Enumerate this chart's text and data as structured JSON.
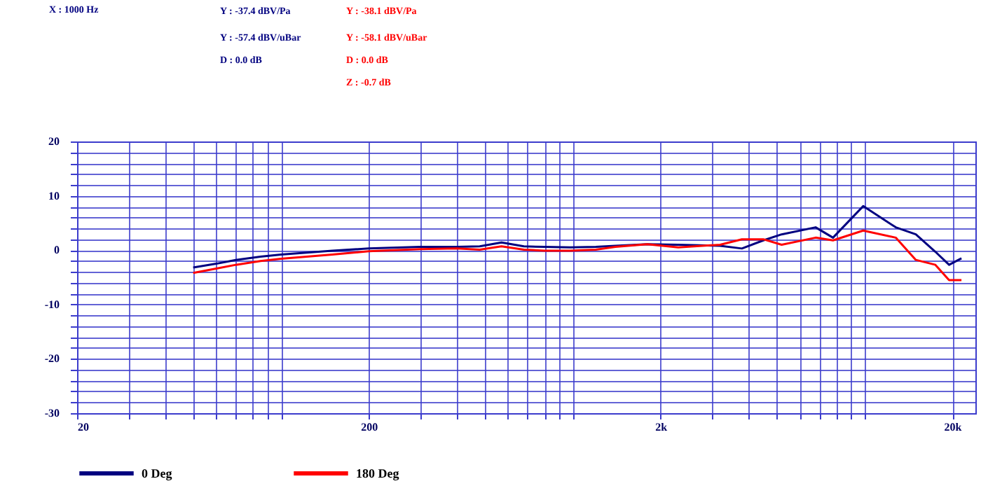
{
  "chart_data": {
    "type": "line",
    "annotations": [
      "X : 1000 Hz",
      "Y : -37.4 dBV/Pa",
      "Y : -57.4 dBV/uBar",
      "D : 0.0 dB",
      "Y : -38.1 dBV/Pa",
      "Y : -58.1 dBV/uBar",
      "D : 0.0 dB",
      "Z : -0.7 dB"
    ],
    "log": "x",
    "grid": true,
    "legend": "bottom",
    "marker": "none",
    "line_style": "solid",
    "xlim": [
      20,
      24000
    ],
    "ylim": [
      -30,
      20
    ],
    "xticks": [
      {
        "value": 20,
        "label": "20"
      },
      {
        "value": 30,
        "label": null
      },
      {
        "value": 40,
        "label": null
      },
      {
        "value": 50,
        "label": null
      },
      {
        "value": 60,
        "label": null
      },
      {
        "value": 70,
        "label": null
      },
      {
        "value": 80,
        "label": null
      },
      {
        "value": 90,
        "label": null
      },
      {
        "value": 100,
        "label": null
      },
      {
        "value": 200,
        "label": "200"
      },
      {
        "value": 300,
        "label": null
      },
      {
        "value": 400,
        "label": null
      },
      {
        "value": 500,
        "label": null
      },
      {
        "value": 600,
        "label": null
      },
      {
        "value": 700,
        "label": null
      },
      {
        "value": 800,
        "label": null
      },
      {
        "value": 900,
        "label": null
      },
      {
        "value": 1000,
        "label": null
      },
      {
        "value": 2000,
        "label": "2k"
      },
      {
        "value": 3000,
        "label": null
      },
      {
        "value": 4000,
        "label": null
      },
      {
        "value": 5000,
        "label": null
      },
      {
        "value": 6000,
        "label": null
      },
      {
        "value": 7000,
        "label": null
      },
      {
        "value": 8000,
        "label": null
      },
      {
        "value": 9000,
        "label": null
      },
      {
        "value": 10000,
        "label": null
      },
      {
        "value": 20000,
        "label": "20k"
      }
    ],
    "yticks": [
      -30,
      {
        "value": -28,
        "label": null
      },
      {
        "value": -26,
        "label": null
      },
      {
        "value": -24,
        "label": null
      },
      {
        "value": -22,
        "label": null
      },
      -20,
      {
        "value": -18,
        "label": null
      },
      {
        "value": -16,
        "label": null
      },
      {
        "value": -14,
        "label": null
      },
      {
        "value": -12,
        "label": null
      },
      -10,
      {
        "value": -8,
        "label": null
      },
      {
        "value": -6,
        "label": null
      },
      {
        "value": -4,
        "label": null
      },
      {
        "value": -2,
        "label": null
      },
      0,
      {
        "value": 2,
        "label": null
      },
      {
        "value": 4,
        "label": null
      },
      {
        "value": 6,
        "label": null
      },
      {
        "value": 8,
        "label": null
      },
      10,
      {
        "value": 12,
        "label": null
      },
      {
        "value": 14,
        "label": null
      },
      {
        "value": 16,
        "label": null
      },
      {
        "value": 18,
        "label": null
      },
      20
    ],
    "x": [
      50,
      60,
      70,
      85,
      100,
      150,
      200,
      300,
      400,
      480,
      570,
      680,
      800,
      980,
      1200,
      1400,
      1800,
      2300,
      3200,
      3800,
      4500,
      5200,
      6800,
      7800,
      9900,
      12800,
      15000,
      17500,
      19500,
      21500
    ],
    "series": [
      {
        "name": "0 Deg",
        "color": "#000080",
        "values": [
          -3.2,
          -2.5,
          -1.8,
          -1.2,
          -0.8,
          -0.1,
          0.3,
          0.6,
          0.6,
          0.7,
          1.4,
          0.7,
          0.6,
          0.5,
          0.6,
          0.8,
          1.1,
          1.0,
          0.8,
          0.3,
          1.8,
          2.9,
          4.2,
          2.3,
          8.1,
          4.2,
          2.9,
          -0.3,
          -2.7,
          -1.5
        ]
      },
      {
        "name": "180 Deg",
        "color": "#ff0000",
        "values": [
          -4.2,
          -3.4,
          -2.7,
          -2.0,
          -1.6,
          -0.8,
          -0.2,
          0.2,
          0.3,
          0.1,
          0.7,
          0.1,
          -0.1,
          -0.1,
          0.1,
          0.6,
          1.1,
          0.5,
          1.0,
          2.0,
          2.0,
          1.0,
          2.3,
          1.8,
          3.6,
          2.3,
          -1.8,
          -2.7,
          -5.5,
          -5.5
        ]
      }
    ]
  }
}
